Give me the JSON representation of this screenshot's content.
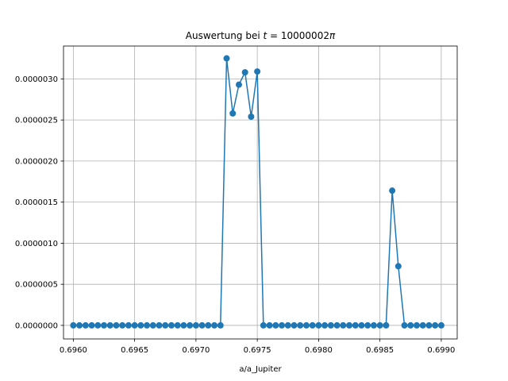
{
  "chart_data": {
    "type": "line",
    "title_prefix": "Auswertung bei ",
    "title_var": "t",
    "title_eq": " = 10000002",
    "title_pi": "π",
    "xlabel": "a/a_Jupiter",
    "ylabel": "",
    "xlim": [
      0.69592,
      0.69913
    ],
    "ylim": [
      -1.65e-07,
      3.4e-06
    ],
    "grid": true,
    "x_ticks": [
      0.696,
      0.6965,
      0.697,
      0.6975,
      0.698,
      0.6985,
      0.699
    ],
    "x_tick_labels": [
      "0.6960",
      "0.6965",
      "0.6970",
      "0.6975",
      "0.6980",
      "0.6985",
      "0.6990"
    ],
    "y_ticks": [
      0.0,
      5e-07,
      1e-06,
      1.5e-06,
      2e-06,
      2.5e-06,
      3e-06
    ],
    "y_tick_labels": [
      "0.0000000",
      "0.0000005",
      "0.0000010",
      "0.0000015",
      "0.0000020",
      "0.0000025",
      "0.0000030"
    ],
    "series": [
      {
        "color": "#1f77b4",
        "x": [
          0.696,
          0.69605,
          0.6961,
          0.69615,
          0.6962,
          0.69625,
          0.6963,
          0.69635,
          0.6964,
          0.69645,
          0.6965,
          0.69655,
          0.6966,
          0.69665,
          0.6967,
          0.69675,
          0.6968,
          0.69685,
          0.6969,
          0.69695,
          0.697,
          0.69705,
          0.6971,
          0.69715,
          0.6972,
          0.69725,
          0.6973,
          0.69735,
          0.6974,
          0.69745,
          0.6975,
          0.69755,
          0.6976,
          0.69765,
          0.6977,
          0.69775,
          0.6978,
          0.69785,
          0.6979,
          0.69795,
          0.698,
          0.69805,
          0.6981,
          0.69815,
          0.6982,
          0.69825,
          0.6983,
          0.69835,
          0.6984,
          0.69845,
          0.6985,
          0.69855,
          0.6986,
          0.69865,
          0.6987,
          0.69875,
          0.6988,
          0.69885,
          0.6989,
          0.69895,
          0.699
        ],
        "y": [
          0,
          0,
          0,
          0,
          0,
          0,
          0,
          0,
          0,
          0,
          0,
          0,
          0,
          0,
          0,
          0,
          0,
          0,
          0,
          0,
          0,
          0,
          0,
          0,
          0,
          3.25e-06,
          2.58e-06,
          2.93e-06,
          3.08e-06,
          2.54e-06,
          3.09e-06,
          0,
          0,
          0,
          0,
          0,
          0,
          0,
          0,
          0,
          0,
          0,
          0,
          0,
          0,
          0,
          0,
          0,
          0,
          0,
          0,
          0,
          1.64e-06,
          7.2e-07,
          0,
          0,
          0,
          0,
          0,
          0,
          0
        ]
      }
    ]
  }
}
